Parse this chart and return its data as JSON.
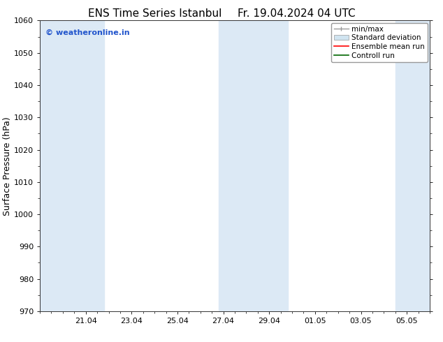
{
  "title_left": "ENS Time Series Istanbul",
  "title_right": "Fr. 19.04.2024 04 UTC",
  "ylabel": "Surface Pressure (hPa)",
  "ylim": [
    970,
    1060
  ],
  "yticks": [
    970,
    980,
    990,
    1000,
    1010,
    1020,
    1030,
    1040,
    1050,
    1060
  ],
  "watermark": "© weatheronline.in",
  "shade_color": "#dce9f5",
  "background_color": "#ffffff",
  "legend_labels": [
    "min/max",
    "Standard deviation",
    "Ensemble mean run",
    "Controll run"
  ],
  "legend_colors_line": [
    "#999999",
    "#bbccdd",
    "#ff0000",
    "#006600"
  ],
  "title_fontsize": 11,
  "tick_fontsize": 8,
  "ylabel_fontsize": 9,
  "watermark_color": "#2255cc",
  "watermark_fontsize": 8,
  "tick_labels": [
    "21.04",
    "23.04",
    "25.04",
    "27.04",
    "29.04",
    "01.05",
    "03.05",
    "05.05"
  ],
  "tick_positions": [
    2,
    4,
    6,
    8,
    10,
    12,
    14,
    16
  ],
  "x_min": 0,
  "x_max": 17,
  "band1_x0": 0,
  "band1_x1": 2.8,
  "band2_x0": 7.8,
  "band2_x1": 10.8,
  "band3_x0": 15.5,
  "band3_x1": 17.0
}
